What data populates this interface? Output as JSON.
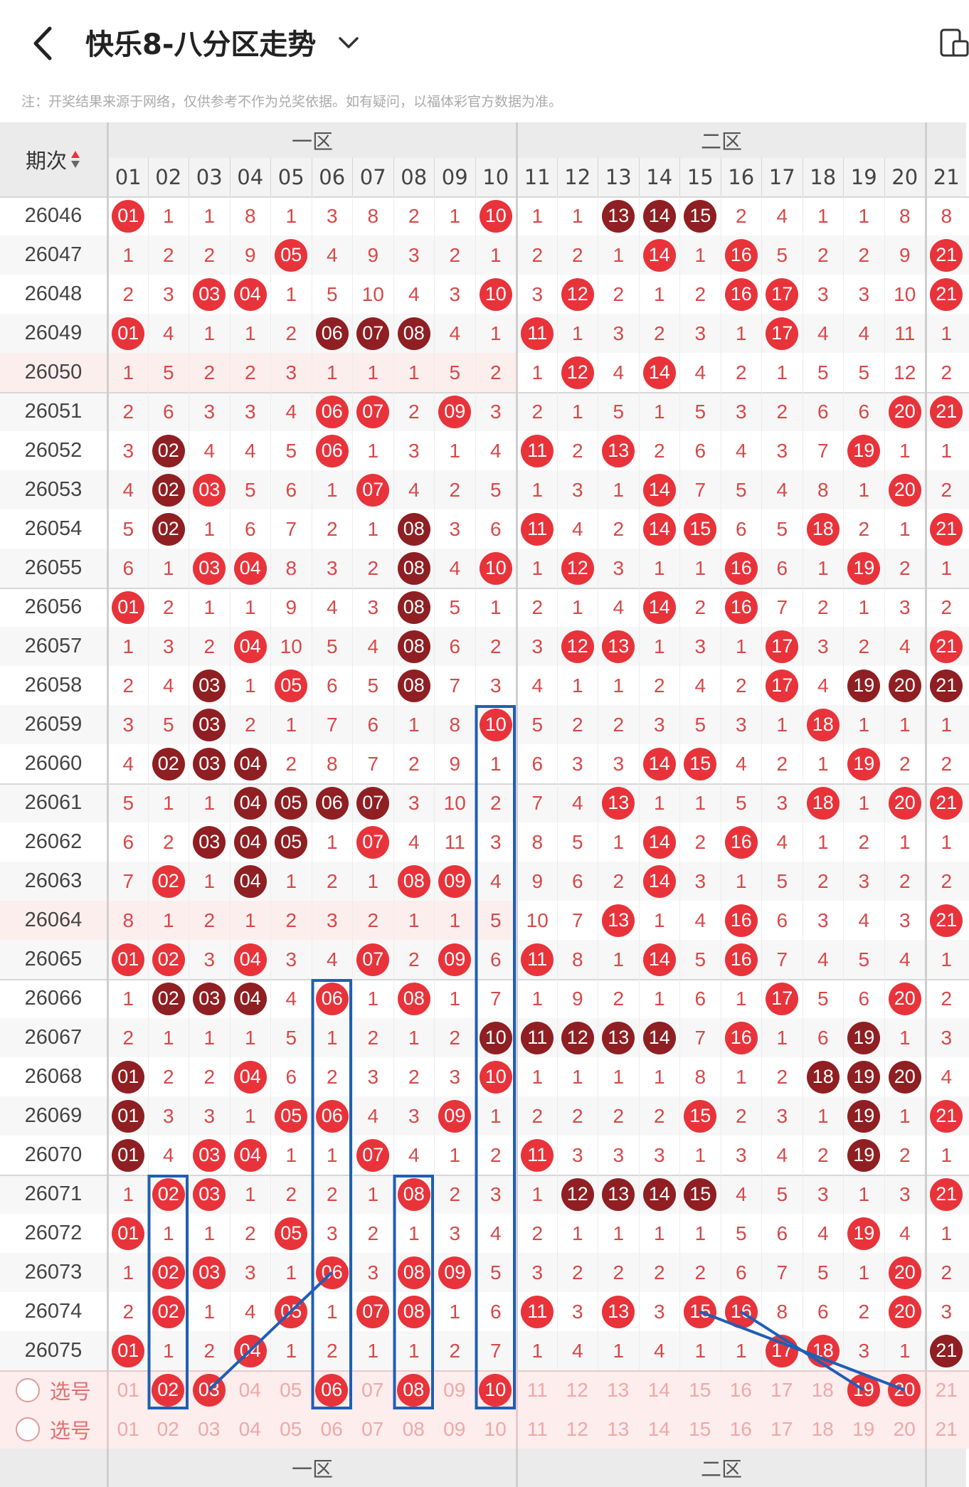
{
  "header": {
    "title": "快乐8-八分区走势",
    "note": "注：开奖结果来源于网络，仅供参考不作为兑奖依据。如有疑问，以福体彩官方数据为准。"
  },
  "table": {
    "period_header": "期次",
    "zones": [
      "一区",
      "二区"
    ],
    "columns": [
      "01",
      "02",
      "03",
      "04",
      "05",
      "06",
      "07",
      "08",
      "09",
      "10",
      "11",
      "12",
      "13",
      "14",
      "15",
      "16",
      "17",
      "18",
      "19",
      "20",
      "21"
    ],
    "rows": [
      {
        "p": "26046",
        "c": [
          "B01",
          "1",
          "1",
          "8",
          "1",
          "3",
          "8",
          "2",
          "1",
          "B10",
          "1",
          "1",
          "D13",
          "D14",
          "D15",
          "2",
          "4",
          "1",
          "1",
          "8",
          "8"
        ]
      },
      {
        "p": "26047",
        "c": [
          "1",
          "2",
          "2",
          "9",
          "B05",
          "4",
          "9",
          "3",
          "2",
          "1",
          "2",
          "2",
          "1",
          "B14",
          "1",
          "B16",
          "5",
          "2",
          "2",
          "9",
          "B21"
        ]
      },
      {
        "p": "26048",
        "c": [
          "2",
          "3",
          "B03",
          "B04",
          "1",
          "5",
          "10",
          "4",
          "3",
          "B10",
          "3",
          "B12",
          "2",
          "1",
          "2",
          "B16",
          "B17",
          "3",
          "3",
          "10",
          "B21"
        ]
      },
      {
        "p": "26049",
        "c": [
          "B01",
          "4",
          "1",
          "1",
          "2",
          "D06",
          "D07",
          "D08",
          "4",
          "1",
          "B11",
          "1",
          "3",
          "2",
          "3",
          "1",
          "B17",
          "4",
          "4",
          "11",
          "1"
        ]
      },
      {
        "p": "26050",
        "c": [
          "1",
          "5",
          "2",
          "2",
          "3",
          "1",
          "1",
          "1",
          "5",
          "2",
          "1",
          "B12",
          "4",
          "B14",
          "4",
          "2",
          "1",
          "5",
          "5",
          "12",
          "2"
        ]
      },
      {
        "p": "26051",
        "c": [
          "2",
          "6",
          "3",
          "3",
          "4",
          "B06",
          "B07",
          "2",
          "B09",
          "3",
          "2",
          "1",
          "5",
          "1",
          "5",
          "3",
          "2",
          "6",
          "6",
          "B20",
          "B21"
        ]
      },
      {
        "p": "26052",
        "c": [
          "3",
          "D02",
          "4",
          "4",
          "5",
          "B06",
          "1",
          "3",
          "1",
          "4",
          "B11",
          "2",
          "B13",
          "2",
          "6",
          "4",
          "3",
          "7",
          "B19",
          "1",
          "1"
        ]
      },
      {
        "p": "26053",
        "c": [
          "4",
          "D02",
          "B03",
          "5",
          "6",
          "1",
          "B07",
          "4",
          "2",
          "5",
          "1",
          "3",
          "1",
          "B14",
          "7",
          "5",
          "4",
          "8",
          "1",
          "B20",
          "2"
        ]
      },
      {
        "p": "26054",
        "c": [
          "5",
          "D02",
          "1",
          "6",
          "7",
          "2",
          "1",
          "D08",
          "3",
          "6",
          "B11",
          "4",
          "2",
          "B14",
          "B15",
          "6",
          "5",
          "B18",
          "2",
          "1",
          "B21"
        ]
      },
      {
        "p": "26055",
        "c": [
          "6",
          "1",
          "B03",
          "B04",
          "8",
          "3",
          "2",
          "D08",
          "4",
          "B10",
          "1",
          "B12",
          "3",
          "1",
          "1",
          "B16",
          "6",
          "1",
          "B19",
          "2",
          "1"
        ]
      },
      {
        "p": "26056",
        "c": [
          "B01",
          "2",
          "1",
          "1",
          "9",
          "4",
          "3",
          "D08",
          "5",
          "1",
          "2",
          "1",
          "4",
          "B14",
          "2",
          "B16",
          "7",
          "2",
          "1",
          "3",
          "2"
        ]
      },
      {
        "p": "26057",
        "c": [
          "1",
          "3",
          "2",
          "B04",
          "10",
          "5",
          "4",
          "D08",
          "6",
          "2",
          "3",
          "B12",
          "B13",
          "1",
          "3",
          "1",
          "B17",
          "3",
          "2",
          "4",
          "B21"
        ]
      },
      {
        "p": "26058",
        "c": [
          "2",
          "4",
          "D03",
          "1",
          "B05",
          "6",
          "5",
          "D08",
          "7",
          "3",
          "4",
          "1",
          "1",
          "2",
          "4",
          "2",
          "B17",
          "4",
          "D19",
          "D20",
          "D21"
        ]
      },
      {
        "p": "26059",
        "c": [
          "3",
          "5",
          "D03",
          "2",
          "1",
          "7",
          "6",
          "1",
          "8",
          "B10",
          "5",
          "2",
          "2",
          "3",
          "5",
          "3",
          "1",
          "B18",
          "1",
          "1",
          "1"
        ]
      },
      {
        "p": "26060",
        "c": [
          "4",
          "D02",
          "D03",
          "D04",
          "2",
          "8",
          "7",
          "2",
          "9",
          "1",
          "6",
          "3",
          "3",
          "B14",
          "B15",
          "4",
          "2",
          "1",
          "B19",
          "2",
          "2"
        ]
      },
      {
        "p": "26061",
        "c": [
          "5",
          "1",
          "1",
          "D04",
          "D05",
          "D06",
          "D07",
          "3",
          "10",
          "2",
          "7",
          "4",
          "B13",
          "1",
          "1",
          "5",
          "3",
          "B18",
          "1",
          "B20",
          "B21"
        ]
      },
      {
        "p": "26062",
        "c": [
          "6",
          "2",
          "D03",
          "D04",
          "D05",
          "1",
          "B07",
          "4",
          "11",
          "3",
          "8",
          "5",
          "1",
          "B14",
          "2",
          "B16",
          "4",
          "1",
          "2",
          "1",
          "1"
        ]
      },
      {
        "p": "26063",
        "c": [
          "7",
          "B02",
          "1",
          "D04",
          "1",
          "2",
          "1",
          "B08",
          "B09",
          "4",
          "9",
          "6",
          "2",
          "B14",
          "3",
          "1",
          "5",
          "2",
          "3",
          "2",
          "2"
        ]
      },
      {
        "p": "26064",
        "c": [
          "8",
          "1",
          "2",
          "1",
          "2",
          "3",
          "2",
          "1",
          "1",
          "5",
          "10",
          "7",
          "B13",
          "1",
          "4",
          "B16",
          "6",
          "3",
          "4",
          "3",
          "B21"
        ]
      },
      {
        "p": "26065",
        "c": [
          "B01",
          "B02",
          "3",
          "B04",
          "3",
          "4",
          "B07",
          "2",
          "B09",
          "6",
          "B11",
          "8",
          "1",
          "B14",
          "5",
          "B16",
          "7",
          "4",
          "5",
          "4",
          "1"
        ]
      },
      {
        "p": "26066",
        "c": [
          "1",
          "D02",
          "D03",
          "D04",
          "4",
          "B06",
          "1",
          "B08",
          "1",
          "7",
          "1",
          "9",
          "2",
          "1",
          "6",
          "1",
          "B17",
          "5",
          "6",
          "B20",
          "2"
        ]
      },
      {
        "p": "26067",
        "c": [
          "2",
          "1",
          "1",
          "1",
          "5",
          "1",
          "2",
          "1",
          "2",
          "D10",
          "D11",
          "D12",
          "D13",
          "D14",
          "7",
          "B16",
          "1",
          "6",
          "D19",
          "1",
          "3"
        ]
      },
      {
        "p": "26068",
        "c": [
          "D01",
          "2",
          "2",
          "B04",
          "6",
          "2",
          "3",
          "2",
          "3",
          "B10",
          "1",
          "1",
          "1",
          "1",
          "8",
          "1",
          "2",
          "D18",
          "D19",
          "D20",
          "4"
        ]
      },
      {
        "p": "26069",
        "c": [
          "D01",
          "3",
          "3",
          "1",
          "B05",
          "B06",
          "4",
          "3",
          "B09",
          "1",
          "2",
          "2",
          "2",
          "2",
          "B15",
          "2",
          "3",
          "1",
          "D19",
          "1",
          "B21"
        ]
      },
      {
        "p": "26070",
        "c": [
          "D01",
          "4",
          "B03",
          "B04",
          "1",
          "1",
          "B07",
          "4",
          "1",
          "2",
          "B11",
          "3",
          "3",
          "3",
          "1",
          "3",
          "4",
          "2",
          "D19",
          "2",
          "1"
        ]
      },
      {
        "p": "26071",
        "c": [
          "1",
          "B02",
          "B03",
          "1",
          "2",
          "2",
          "1",
          "B08",
          "2",
          "3",
          "1",
          "D12",
          "D13",
          "D14",
          "D15",
          "4",
          "5",
          "3",
          "1",
          "3",
          "B21"
        ]
      },
      {
        "p": "26072",
        "c": [
          "B01",
          "1",
          "1",
          "2",
          "B05",
          "3",
          "2",
          "1",
          "3",
          "4",
          "2",
          "1",
          "1",
          "1",
          "1",
          "5",
          "6",
          "4",
          "B19",
          "4",
          "1"
        ]
      },
      {
        "p": "26073",
        "c": [
          "1",
          "B02",
          "B03",
          "3",
          "1",
          "B06",
          "3",
          "B08",
          "B09",
          "5",
          "3",
          "2",
          "2",
          "2",
          "2",
          "6",
          "7",
          "5",
          "1",
          "B20",
          "2"
        ]
      },
      {
        "p": "26074",
        "c": [
          "2",
          "B02",
          "1",
          "4",
          "B05",
          "1",
          "B07",
          "B08",
          "1",
          "6",
          "B11",
          "3",
          "B13",
          "3",
          "B15",
          "B16",
          "8",
          "6",
          "2",
          "B20",
          "3"
        ]
      },
      {
        "p": "26075",
        "c": [
          "B01",
          "1",
          "2",
          "B04",
          "1",
          "2",
          "1",
          "1",
          "2",
          "7",
          "1",
          "4",
          "1",
          "4",
          "1",
          "1",
          "B17",
          "B18",
          "3",
          "1",
          "D21"
        ]
      }
    ],
    "select_rows": [
      {
        "label": "选号",
        "c": [
          "01",
          "B02",
          "B03",
          "04",
          "05",
          "B06",
          "07",
          "B08",
          "09",
          "B10",
          "11",
          "12",
          "13",
          "14",
          "15",
          "16",
          "17",
          "18",
          "B19",
          "B20",
          "21"
        ]
      },
      {
        "label": "选号",
        "c": [
          "01",
          "02",
          "03",
          "04",
          "05",
          "06",
          "07",
          "08",
          "09",
          "10",
          "11",
          "12",
          "13",
          "14",
          "15",
          "16",
          "17",
          "18",
          "19",
          "20",
          "21"
        ]
      }
    ]
  },
  "colors": {
    "ball_red": "#e8333a",
    "ball_dark": "#8f1f22",
    "miss_text": "#d94848",
    "annotation": "#1f5fb5"
  }
}
